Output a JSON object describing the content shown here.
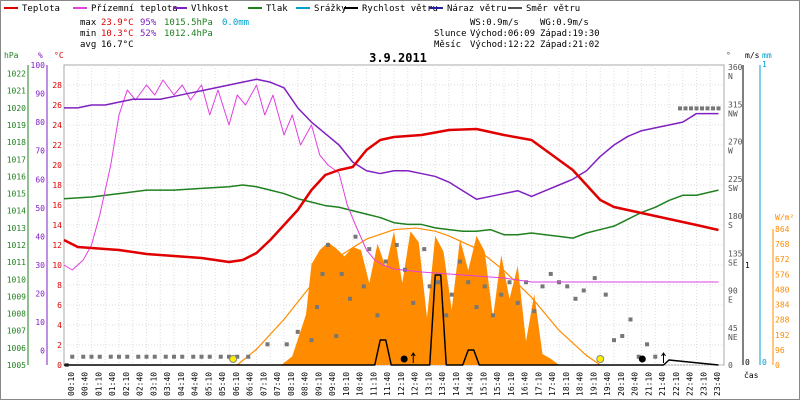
{
  "chart_data": {
    "type": "line",
    "title": "3.9.2011",
    "legend": [
      {
        "name": "Teplota",
        "color": "#e00000"
      },
      {
        "name": "Přízemní teplota",
        "color": "#e040e0"
      },
      {
        "name": "Vlhkost",
        "color": "#8020c0"
      },
      {
        "name": "Tlak",
        "color": "#208020"
      },
      {
        "name": "Srážky",
        "color": "#00a0d0"
      },
      {
        "name": "Rychlost větru",
        "color": "#000000"
      },
      {
        "name": "Náraz větru",
        "color": "#2020a0"
      },
      {
        "name": "Směr větru",
        "color": "#505050"
      }
    ],
    "stats": [
      {
        "label": "max",
        "temp": "23.9°C",
        "hum": "95%",
        "press": "1015.5hPa",
        "rain": "0.0mm"
      },
      {
        "label": "min",
        "temp": "10.3°C",
        "hum": "52%",
        "press": "1012.4hPa",
        "rain": ""
      },
      {
        "label": "avg",
        "temp": "16.7°C",
        "hum": "",
        "press": "",
        "rain": ""
      }
    ],
    "wind_info": {
      "ws": "WS:0.9m/s",
      "wg": "WG:0.9m/s"
    },
    "sun": {
      "label": "Slunce",
      "rise": "Východ:06:09",
      "set": "Západ:19:30"
    },
    "moon": {
      "label": "Měsíc",
      "rise": "Východ:12:22",
      "set": "Západ:21:02"
    },
    "axes": {
      "hpa_unit": "hPa",
      "pct_unit": "%",
      "temp_unit": "°C",
      "dir_unit": "°",
      "ms_unit": "m/s",
      "mm_unit": "mm",
      "wm2_unit": "W/m²",
      "time_label": "čas",
      "hpa_ticks": [
        1005,
        1006,
        1007,
        1008,
        1009,
        1010,
        1011,
        1012,
        1013,
        1014,
        1015,
        1016,
        1017,
        1018,
        1019,
        1020,
        1021,
        1022
      ],
      "pct_ticks": [
        0,
        10,
        20,
        30,
        40,
        50,
        60,
        70,
        80,
        90,
        100
      ],
      "temp_ticks": [
        0,
        2,
        4,
        6,
        8,
        10,
        12,
        14,
        16,
        18,
        20,
        22,
        24,
        26,
        28
      ],
      "dir_ticks": [
        {
          "deg": 0,
          "dir": ""
        },
        {
          "deg": 45,
          "dir": "NE"
        },
        {
          "deg": 90,
          "dir": "E"
        },
        {
          "deg": 135,
          "dir": "SE"
        },
        {
          "deg": 180,
          "dir": "S"
        },
        {
          "deg": 225,
          "dir": "SW"
        },
        {
          "deg": 270,
          "dir": "W"
        },
        {
          "deg": 315,
          "dir": "NW"
        },
        {
          "deg": 360,
          "dir": "N"
        }
      ],
      "ms_ticks": [
        "0",
        "1"
      ],
      "mm_ticks": [
        "0",
        "1"
      ],
      "wm2_ticks": [
        0,
        96,
        192,
        288,
        384,
        480,
        576,
        672,
        768,
        864
      ],
      "time_ticks": [
        "00:10",
        "00:40",
        "01:10",
        "01:40",
        "02:10",
        "02:40",
        "03:10",
        "03:40",
        "04:10",
        "04:40",
        "05:10",
        "05:40",
        "06:10",
        "06:40",
        "07:10",
        "07:40",
        "08:10",
        "08:40",
        "09:10",
        "09:40",
        "10:10",
        "10:40",
        "11:10",
        "11:40",
        "12:10",
        "12:40",
        "13:10",
        "13:40",
        "14:10",
        "14:40",
        "15:10",
        "15:40",
        "16:10",
        "16:40",
        "17:10",
        "17:40",
        "18:10",
        "18:40",
        "19:10",
        "19:40",
        "20:10",
        "20:40",
        "21:10",
        "21:40",
        "22:10",
        "22:40",
        "23:10",
        "23:40"
      ]
    },
    "series": {
      "temperature_c": {
        "x": [
          0,
          0.5,
          1,
          2,
          3,
          4,
          5,
          6,
          6.5,
          7,
          7.5,
          8,
          8.5,
          9,
          9.5,
          10,
          10.5,
          11,
          11.5,
          12,
          13,
          14,
          15,
          16,
          17,
          18,
          18.5,
          19,
          19.5,
          20,
          21,
          22,
          23,
          23.8
        ],
        "y": [
          12.5,
          11.8,
          11.7,
          11.5,
          11.1,
          10.9,
          10.7,
          10.3,
          10.5,
          11.2,
          12.5,
          14,
          15.5,
          17.5,
          19,
          19.5,
          19.8,
          21.5,
          22.5,
          22.8,
          23,
          23.5,
          23.6,
          23,
          22.5,
          20.5,
          19.5,
          18,
          16.5,
          15.8,
          15.2,
          14.6,
          14,
          13.5
        ]
      },
      "ground_temperature_c": {
        "x": [
          0,
          0.3,
          0.7,
          1,
          1.3,
          1.7,
          2,
          2.3,
          2.6,
          3,
          3.3,
          3.6,
          4,
          4.3,
          4.6,
          5,
          5.3,
          5.6,
          6,
          6.3,
          6.6,
          7,
          7.3,
          7.6,
          8,
          8.3,
          8.6,
          9,
          9.3,
          9.6,
          10,
          10.3,
          10.6,
          11,
          11.3,
          11.6,
          12,
          13,
          14,
          15,
          16,
          16.5,
          17,
          18,
          19,
          20,
          21,
          22,
          23,
          23.8
        ],
        "y": [
          10,
          9.5,
          10.5,
          12,
          15,
          20,
          25,
          27.5,
          26.5,
          28,
          27,
          28.5,
          27,
          28,
          26.5,
          28,
          25,
          27.5,
          24,
          27,
          26,
          28,
          25,
          27,
          23,
          25,
          22,
          24,
          21,
          20,
          19.2,
          16,
          14,
          11.5,
          10.5,
          10,
          9.6,
          9.3,
          9.1,
          8.9,
          8.7,
          8.5,
          8.3,
          8.3,
          8.3,
          8.3,
          8.3,
          8.3,
          8.3,
          8.3
        ]
      },
      "humidity_pct": {
        "x": [
          0,
          0.5,
          1,
          1.5,
          2,
          2.5,
          3,
          3.5,
          4,
          4.5,
          5,
          5.5,
          6,
          6.5,
          7,
          7.5,
          8,
          8.5,
          9,
          9.5,
          10,
          10.5,
          11,
          11.5,
          12,
          12.5,
          13,
          13.5,
          14,
          14.5,
          15,
          15.5,
          16,
          16.5,
          17,
          17.5,
          18,
          18.5,
          19,
          19.5,
          20,
          20.5,
          21,
          21.5,
          22,
          22.5,
          23,
          23.8
        ],
        "y": [
          85,
          85,
          86,
          86,
          87,
          88,
          88,
          88,
          89,
          90,
          91,
          92,
          93,
          94,
          95,
          94,
          92,
          85,
          80,
          76,
          72,
          66,
          63,
          62,
          63,
          63,
          62,
          61,
          59,
          56,
          53,
          54,
          55,
          56,
          54,
          56,
          58,
          60,
          63,
          68,
          72,
          75,
          77,
          78,
          79,
          80,
          83,
          83
        ]
      },
      "pressure_hpa": {
        "x": [
          0,
          1,
          2,
          3,
          4,
          5,
          6,
          6.5,
          7,
          7.5,
          8,
          8.5,
          9,
          9.5,
          10,
          10.5,
          11,
          11.5,
          12,
          12.5,
          13,
          13.5,
          14,
          14.5,
          15,
          15.5,
          16,
          16.5,
          17,
          17.5,
          18,
          18.5,
          19,
          19.5,
          20,
          20.5,
          21,
          21.5,
          22,
          22.5,
          23,
          23.8
        ],
        "y": [
          1014.7,
          1014.8,
          1015,
          1015.2,
          1015.2,
          1015.3,
          1015.4,
          1015.5,
          1015.4,
          1015.2,
          1015,
          1014.7,
          1014.5,
          1014.3,
          1014.2,
          1014,
          1013.8,
          1013.6,
          1013.3,
          1013.2,
          1013.2,
          1013,
          1012.9,
          1012.8,
          1012.8,
          1012.9,
          1012.6,
          1012.6,
          1012.7,
          1012.6,
          1012.5,
          1012.4,
          1012.7,
          1012.9,
          1013.1,
          1013.5,
          1013.9,
          1014.2,
          1014.6,
          1014.9,
          1014.9,
          1015.2
        ]
      },
      "solar_radiation_wm2": {
        "x": [
          7.9,
          8.3,
          8.8,
          9,
          9.3,
          9.6,
          9.9,
          10.2,
          10.5,
          10.8,
          11.1,
          11.4,
          11.7,
          12,
          12.3,
          12.6,
          12.9,
          13.2,
          13.5,
          13.8,
          14.1,
          14.4,
          14.7,
          15,
          15.3,
          15.6,
          15.9,
          16.2,
          16.5,
          16.8,
          17.1,
          17.4,
          17.7,
          18
        ],
        "y": [
          0,
          55,
          320,
          640,
          730,
          780,
          740,
          690,
          750,
          730,
          520,
          770,
          620,
          850,
          520,
          850,
          780,
          300,
          820,
          720,
          350,
          800,
          600,
          820,
          720,
          300,
          700,
          420,
          630,
          150,
          450,
          70,
          40,
          0
        ]
      },
      "solar_max_wm2": {
        "x": [
          6.3,
          7,
          8,
          9,
          10,
          11,
          12,
          12.8,
          13.5,
          14,
          15,
          16,
          17,
          18,
          19,
          19.5
        ],
        "y": [
          0,
          100,
          290,
          510,
          690,
          800,
          860,
          870,
          850,
          820,
          740,
          600,
          430,
          220,
          60,
          0
        ]
      },
      "wind_speed_ms": {
        "x": [
          0,
          11.3,
          11.5,
          11.7,
          11.9,
          12.1,
          13.3,
          13.5,
          13.7,
          13.9,
          14.5,
          14.7,
          14.9,
          15.1,
          21,
          21.8,
          22,
          23.8
        ],
        "y": [
          0,
          0,
          0.25,
          0.25,
          0,
          0,
          0,
          0.9,
          0.9,
          0,
          0,
          0.15,
          0.15,
          0,
          0,
          0,
          0.05,
          0
        ]
      },
      "wind_direction_deg": {
        "x": [
          0.1,
          0.3,
          0.7,
          1,
          1.3,
          1.7,
          2,
          2.3,
          2.7,
          3,
          3.3,
          3.7,
          4,
          4.3,
          4.7,
          5,
          5.3,
          5.7,
          6,
          6.3,
          6.7,
          7.4,
          8.1,
          8.5,
          9,
          9.2,
          9.4,
          9.6,
          9.9,
          10.1,
          10.4,
          10.6,
          10.9,
          11.1,
          11.4,
          11.7,
          12.1,
          12.4,
          12.7,
          13.1,
          13.3,
          13.6,
          13.9,
          14.1,
          14.4,
          14.7,
          15,
          15.3,
          15.6,
          15.9,
          16.2,
          16.5,
          16.8,
          17.1,
          17.4,
          17.7,
          18,
          18.3,
          18.6,
          18.9,
          19.3,
          19.7,
          20,
          20.3,
          20.6,
          20.9,
          21.2,
          21.5,
          22.4,
          22.6,
          22.8,
          23,
          23.2,
          23.4,
          23.6,
          23.8
        ],
        "y": [
          0,
          10,
          10,
          10,
          10,
          10,
          10,
          10,
          10,
          10,
          10,
          10,
          10,
          10,
          10,
          10,
          10,
          10,
          10,
          10,
          10,
          25,
          25,
          40,
          30,
          70,
          110,
          145,
          35,
          110,
          80,
          155,
          95,
          140,
          60,
          125,
          145,
          115,
          75,
          140,
          95,
          100,
          60,
          85,
          125,
          100,
          70,
          95,
          60,
          85,
          100,
          75,
          100,
          65,
          95,
          110,
          100,
          95,
          80,
          90,
          105,
          85,
          30,
          35,
          55,
          10,
          25,
          10,
          310,
          310,
          310,
          310,
          310,
          310,
          310,
          310
        ]
      }
    },
    "markers": {
      "sun": [
        {
          "x": 6.15
        },
        {
          "x": 19.5
        }
      ],
      "moon": [
        {
          "x": 12.37
        },
        {
          "x": 21.03
        }
      ],
      "arrows": [
        {
          "x": 12.7
        },
        {
          "x": 21.8
        }
      ]
    }
  }
}
